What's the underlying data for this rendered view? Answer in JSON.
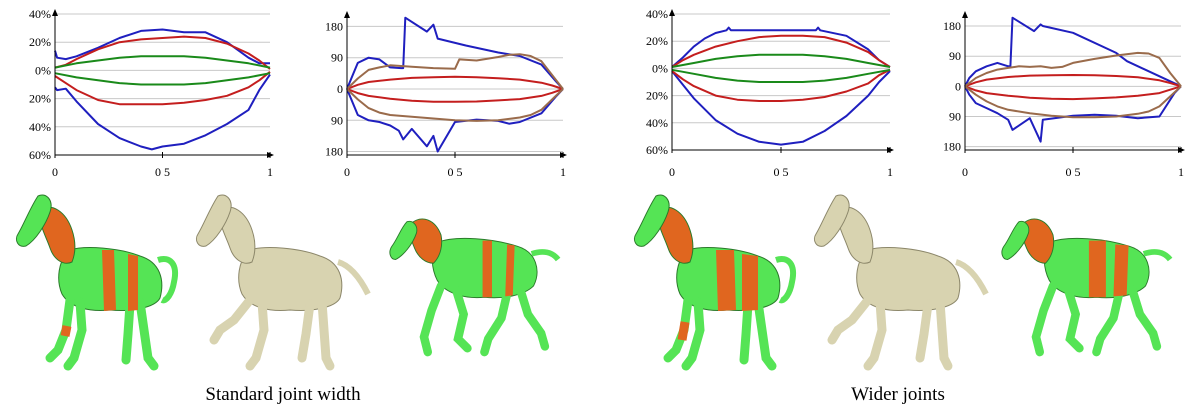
{
  "chart_data": [
    {
      "type": "line",
      "xlim": [
        0,
        1
      ],
      "ylim": [
        -60,
        40
      ],
      "x_ticks": [
        "0",
        "0 5",
        "1"
      ],
      "y_ticks": [
        {
          "value": 40,
          "label": "40%"
        },
        {
          "value": 20,
          "label": "20%"
        },
        {
          "value": 0,
          "label": "0%"
        },
        {
          "value": -20,
          "label": "20%"
        },
        {
          "value": -40,
          "label": "40%"
        },
        {
          "value": -60,
          "label": "60%"
        }
      ],
      "grid": true,
      "series": [
        {
          "color": "#1f1fbf",
          "x": [
            0,
            0.01,
            0.05,
            0.1,
            0.2,
            0.3,
            0.4,
            0.5,
            0.6,
            0.7,
            0.8,
            0.9,
            0.95,
            1
          ],
          "y": [
            14,
            9,
            8,
            10,
            16,
            23,
            28,
            29,
            27,
            27,
            20,
            9,
            5,
            5
          ]
        },
        {
          "color": "#1f1fbf",
          "x": [
            0,
            0.01,
            0.05,
            0.1,
            0.2,
            0.3,
            0.4,
            0.45,
            0.5,
            0.6,
            0.7,
            0.8,
            0.9,
            0.95,
            1
          ],
          "y": [
            -12,
            -14,
            -13,
            -22,
            -38,
            -48,
            -54,
            -56,
            -54,
            -52,
            -46,
            -38,
            -28,
            -14,
            -3
          ]
        },
        {
          "color": "#c41e1e",
          "x": [
            0,
            0.05,
            0.1,
            0.2,
            0.3,
            0.4,
            0.5,
            0.6,
            0.7,
            0.8,
            0.9,
            0.95,
            1
          ],
          "y": [
            2,
            4,
            8,
            15,
            20,
            22,
            23,
            24,
            23,
            19,
            12,
            7,
            1
          ]
        },
        {
          "color": "#c41e1e",
          "x": [
            0,
            0.05,
            0.1,
            0.2,
            0.3,
            0.4,
            0.5,
            0.6,
            0.7,
            0.8,
            0.9,
            0.95,
            1
          ],
          "y": [
            -4,
            -9,
            -14,
            -21,
            -24,
            -24,
            -24,
            -23,
            -21,
            -18,
            -12,
            -7,
            -1
          ]
        },
        {
          "color": "#1a8a1a",
          "x": [
            0,
            0.1,
            0.2,
            0.3,
            0.4,
            0.5,
            0.6,
            0.7,
            0.8,
            0.9,
            1
          ],
          "y": [
            2,
            5,
            7,
            9,
            10,
            10,
            10,
            9,
            7,
            5,
            2
          ]
        },
        {
          "color": "#1a8a1a",
          "x": [
            0,
            0.1,
            0.2,
            0.3,
            0.4,
            0.5,
            0.6,
            0.7,
            0.8,
            0.9,
            1
          ],
          "y": [
            -2,
            -5,
            -7,
            -9,
            -10,
            -10,
            -10,
            -9,
            -7,
            -5,
            -2
          ]
        }
      ]
    },
    {
      "type": "line",
      "xlim": [
        0,
        1
      ],
      "ylim": [
        -190,
        210
      ],
      "x_ticks": [
        "0",
        "0 5",
        "1"
      ],
      "y_ticks": [
        {
          "value": 180,
          "label": "180"
        },
        {
          "value": 90,
          "label": "90"
        },
        {
          "value": 0,
          "label": "0"
        },
        {
          "value": -90,
          "label": "90"
        },
        {
          "value": -180,
          "label": "180"
        }
      ],
      "grid": true,
      "series": [
        {
          "color": "#1f1fbf",
          "x": [
            0,
            0.02,
            0.05,
            0.1,
            0.15,
            0.2,
            0.25,
            0.26,
            0.27,
            0.37,
            0.4,
            0.42,
            0.55,
            0.7,
            0.8,
            0.9,
            0.97,
            1
          ],
          "y": [
            0,
            30,
            75,
            90,
            85,
            62,
            60,
            60,
            205,
            165,
            185,
            145,
            125,
            105,
            95,
            70,
            20,
            0
          ]
        },
        {
          "color": "#1f1fbf",
          "x": [
            0,
            0.02,
            0.05,
            0.1,
            0.15,
            0.2,
            0.24,
            0.26,
            0.3,
            0.37,
            0.4,
            0.42,
            0.5,
            0.6,
            0.7,
            0.75,
            0.8,
            0.9,
            0.97,
            1
          ],
          "y": [
            0,
            -30,
            -75,
            -90,
            -95,
            -105,
            -120,
            -145,
            -115,
            -165,
            -135,
            -180,
            -95,
            -88,
            -92,
            -100,
            -95,
            -70,
            -20,
            0
          ]
        },
        {
          "color": "#c41e1e",
          "x": [
            0,
            0.05,
            0.1,
            0.2,
            0.3,
            0.4,
            0.5,
            0.6,
            0.7,
            0.8,
            0.9,
            0.95,
            1
          ],
          "y": [
            0,
            12,
            20,
            27,
            32,
            34,
            35,
            34,
            31,
            27,
            18,
            10,
            0
          ]
        },
        {
          "color": "#c41e1e",
          "x": [
            0,
            0.05,
            0.1,
            0.2,
            0.3,
            0.4,
            0.5,
            0.6,
            0.7,
            0.8,
            0.9,
            0.95,
            1
          ],
          "y": [
            0,
            -12,
            -20,
            -28,
            -34,
            -37,
            -37,
            -36,
            -33,
            -29,
            -20,
            -11,
            0
          ]
        },
        {
          "color": "#9a6b4b",
          "x": [
            0,
            0.05,
            0.1,
            0.15,
            0.2,
            0.3,
            0.4,
            0.5,
            0.52,
            0.6,
            0.7,
            0.75,
            0.8,
            0.85,
            0.9,
            0.95,
            1
          ],
          "y": [
            0,
            30,
            55,
            62,
            68,
            64,
            60,
            58,
            85,
            82,
            92,
            98,
            100,
            95,
            80,
            40,
            0
          ]
        },
        {
          "color": "#9a6b4b",
          "x": [
            0,
            0.05,
            0.1,
            0.15,
            0.2,
            0.3,
            0.4,
            0.5,
            0.6,
            0.7,
            0.8,
            0.85,
            0.9,
            0.95,
            1
          ],
          "y": [
            0,
            -30,
            -55,
            -68,
            -75,
            -80,
            -85,
            -90,
            -92,
            -90,
            -82,
            -75,
            -60,
            -30,
            0
          ]
        }
      ]
    },
    {
      "type": "line",
      "xlim": [
        0,
        1
      ],
      "ylim": [
        -60,
        40
      ],
      "x_ticks": [
        "0",
        "0 5",
        "1"
      ],
      "y_ticks": [
        {
          "value": 40,
          "label": "40%"
        },
        {
          "value": 20,
          "label": "20%"
        },
        {
          "value": 0,
          "label": "0%"
        },
        {
          "value": -20,
          "label": "20%"
        },
        {
          "value": -40,
          "label": "40%"
        },
        {
          "value": -60,
          "label": "60%"
        }
      ],
      "grid": true,
      "series": [
        {
          "color": "#1f1fbf",
          "x": [
            0,
            0.05,
            0.1,
            0.15,
            0.2,
            0.25,
            0.26,
            0.27,
            0.4,
            0.5,
            0.6,
            0.66,
            0.67,
            0.68,
            0.8,
            0.9,
            0.95,
            1
          ],
          "y": [
            1,
            8,
            16,
            22,
            26,
            28,
            30,
            28,
            28,
            28,
            28,
            28,
            30,
            28,
            24,
            14,
            6,
            1
          ]
        },
        {
          "color": "#1f1fbf",
          "x": [
            0,
            0.05,
            0.1,
            0.2,
            0.3,
            0.4,
            0.5,
            0.6,
            0.7,
            0.8,
            0.9,
            0.95,
            1
          ],
          "y": [
            -2,
            -12,
            -22,
            -38,
            -48,
            -54,
            -56,
            -54,
            -46,
            -35,
            -20,
            -10,
            -2
          ]
        },
        {
          "color": "#c41e1e",
          "x": [
            0,
            0.05,
            0.1,
            0.2,
            0.3,
            0.4,
            0.5,
            0.6,
            0.7,
            0.8,
            0.9,
            0.95,
            1
          ],
          "y": [
            1,
            6,
            10,
            16,
            20,
            23,
            24,
            24,
            23,
            19,
            12,
            6,
            1
          ]
        },
        {
          "color": "#c41e1e",
          "x": [
            0,
            0.05,
            0.1,
            0.2,
            0.3,
            0.4,
            0.5,
            0.6,
            0.7,
            0.8,
            0.9,
            0.95,
            1
          ],
          "y": [
            -2,
            -8,
            -13,
            -20,
            -23,
            -24,
            -24,
            -23,
            -21,
            -17,
            -11,
            -5,
            -1
          ]
        },
        {
          "color": "#1a8a1a",
          "x": [
            0,
            0.1,
            0.2,
            0.3,
            0.4,
            0.5,
            0.6,
            0.7,
            0.8,
            0.9,
            1
          ],
          "y": [
            1,
            4,
            7,
            9,
            10,
            10,
            10,
            9,
            7,
            4,
            1
          ]
        },
        {
          "color": "#1a8a1a",
          "x": [
            0,
            0.1,
            0.2,
            0.3,
            0.4,
            0.5,
            0.6,
            0.7,
            0.8,
            0.9,
            1
          ],
          "y": [
            -1,
            -4,
            -7,
            -9,
            -10,
            -10,
            -10,
            -9,
            -7,
            -4,
            -1
          ]
        }
      ]
    },
    {
      "type": "line",
      "xlim": [
        0,
        1
      ],
      "ylim": [
        -190,
        210
      ],
      "x_ticks": [
        "0",
        "0 5",
        "1"
      ],
      "y_ticks": [
        {
          "value": 180,
          "label": "180"
        },
        {
          "value": 90,
          "label": "90"
        },
        {
          "value": 0,
          "label": "0"
        },
        {
          "value": -90,
          "label": "90"
        },
        {
          "value": -180,
          "label": "180"
        }
      ],
      "grid": true,
      "series": [
        {
          "color": "#1f1fbf",
          "x": [
            0,
            0.02,
            0.05,
            0.1,
            0.15,
            0.2,
            0.21,
            0.22,
            0.32,
            0.35,
            0.36,
            0.5,
            0.7,
            0.75,
            1
          ],
          "y": [
            0,
            25,
            45,
            60,
            70,
            60,
            60,
            205,
            165,
            185,
            180,
            160,
            100,
            75,
            0
          ]
        },
        {
          "color": "#1f1fbf",
          "x": [
            0,
            0.02,
            0.05,
            0.1,
            0.15,
            0.2,
            0.22,
            0.3,
            0.35,
            0.36,
            0.5,
            0.6,
            0.7,
            0.8,
            0.9,
            0.97,
            1
          ],
          "y": [
            0,
            -25,
            -50,
            -65,
            -80,
            -100,
            -130,
            -95,
            -165,
            -100,
            -88,
            -85,
            -88,
            -95,
            -90,
            -20,
            0
          ]
        },
        {
          "color": "#c41e1e",
          "x": [
            0,
            0.05,
            0.1,
            0.2,
            0.3,
            0.4,
            0.5,
            0.6,
            0.7,
            0.8,
            0.9,
            0.95,
            1
          ],
          "y": [
            0,
            12,
            20,
            28,
            32,
            33,
            34,
            33,
            31,
            27,
            18,
            10,
            0
          ]
        },
        {
          "color": "#c41e1e",
          "x": [
            0,
            0.05,
            0.1,
            0.2,
            0.3,
            0.4,
            0.5,
            0.6,
            0.7,
            0.8,
            0.9,
            0.95,
            1
          ],
          "y": [
            0,
            -12,
            -20,
            -28,
            -34,
            -37,
            -38,
            -36,
            -33,
            -28,
            -20,
            -10,
            0
          ]
        },
        {
          "color": "#9a6b4b",
          "x": [
            0,
            0.05,
            0.1,
            0.15,
            0.2,
            0.25,
            0.3,
            0.35,
            0.4,
            0.45,
            0.5,
            0.6,
            0.7,
            0.8,
            0.85,
            0.9,
            0.95,
            1
          ],
          "y": [
            0,
            25,
            40,
            50,
            55,
            60,
            58,
            60,
            55,
            58,
            70,
            82,
            92,
            100,
            98,
            85,
            40,
            0
          ]
        },
        {
          "color": "#9a6b4b",
          "x": [
            0,
            0.05,
            0.1,
            0.15,
            0.2,
            0.3,
            0.4,
            0.5,
            0.6,
            0.7,
            0.8,
            0.85,
            0.9,
            0.95,
            1
          ],
          "y": [
            0,
            -25,
            -45,
            -60,
            -70,
            -80,
            -88,
            -92,
            -92,
            -90,
            -82,
            -75,
            -60,
            -30,
            0
          ]
        }
      ]
    }
  ],
  "figures": {
    "colors": {
      "body": "#55e455",
      "joint": "#e0661f",
      "plain": "#d8d3b0",
      "outline": "#2a7a2a"
    }
  },
  "captions": {
    "left": "Standard joint width",
    "right": "Wider joints"
  }
}
